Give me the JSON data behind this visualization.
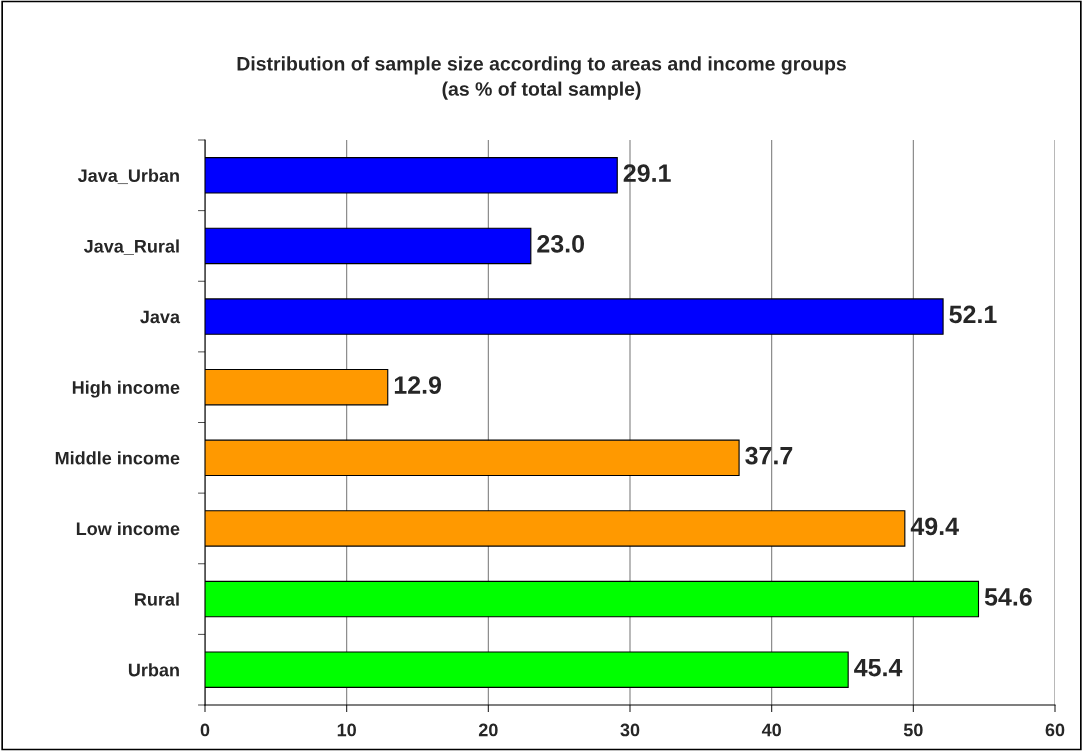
{
  "chart_data": {
    "type": "bar",
    "orientation": "horizontal",
    "title": "Distribution of sample size according to areas and income groups\n(as % of total sample)",
    "categories": [
      "Java_Urban",
      "Java_Rural",
      "Java",
      "High income",
      "Middle income",
      "Low income",
      "Rural",
      "Urban"
    ],
    "values": [
      29.1,
      23.0,
      52.1,
      12.9,
      37.7,
      49.4,
      54.6,
      45.4
    ],
    "value_labels": [
      "29.1",
      "23.0",
      "52.1",
      "12.9",
      "37.7",
      "49.4",
      "54.6",
      "45.4"
    ],
    "colors": [
      "#0000ff",
      "#0000ff",
      "#0000ff",
      "#ff9900",
      "#ff9900",
      "#ff9900",
      "#00ff00",
      "#00ff00"
    ],
    "xlim": [
      0,
      60
    ],
    "xticks": [
      0,
      10,
      20,
      30,
      40,
      50,
      60
    ],
    "grid": "x",
    "legend": false
  }
}
